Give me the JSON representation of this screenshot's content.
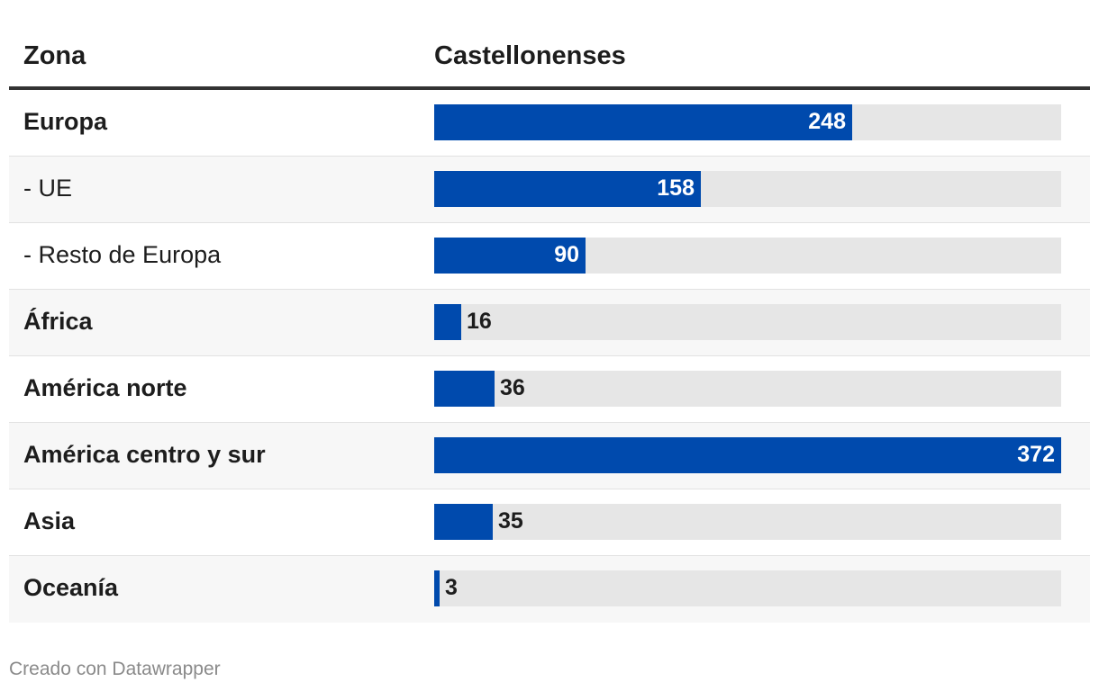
{
  "header": {
    "col1": "Zona",
    "col2": "Castellonenses"
  },
  "chart_data": {
    "type": "bar",
    "orientation": "horizontal",
    "categories": [
      "Europa",
      "- UE",
      "- Resto de Europa",
      "África",
      "América norte",
      "América centro y sur",
      "Asia",
      "Oceanía"
    ],
    "values": [
      248,
      158,
      90,
      16,
      36,
      372,
      35,
      3
    ],
    "bold": [
      true,
      false,
      false,
      true,
      true,
      true,
      true,
      true
    ],
    "xlim": [
      0,
      372
    ],
    "bar_color": "#004aad",
    "track_color": "#e6e6e6",
    "xlabel": "",
    "ylabel": ""
  },
  "footer": {
    "credit": "Creado con Datawrapper"
  }
}
